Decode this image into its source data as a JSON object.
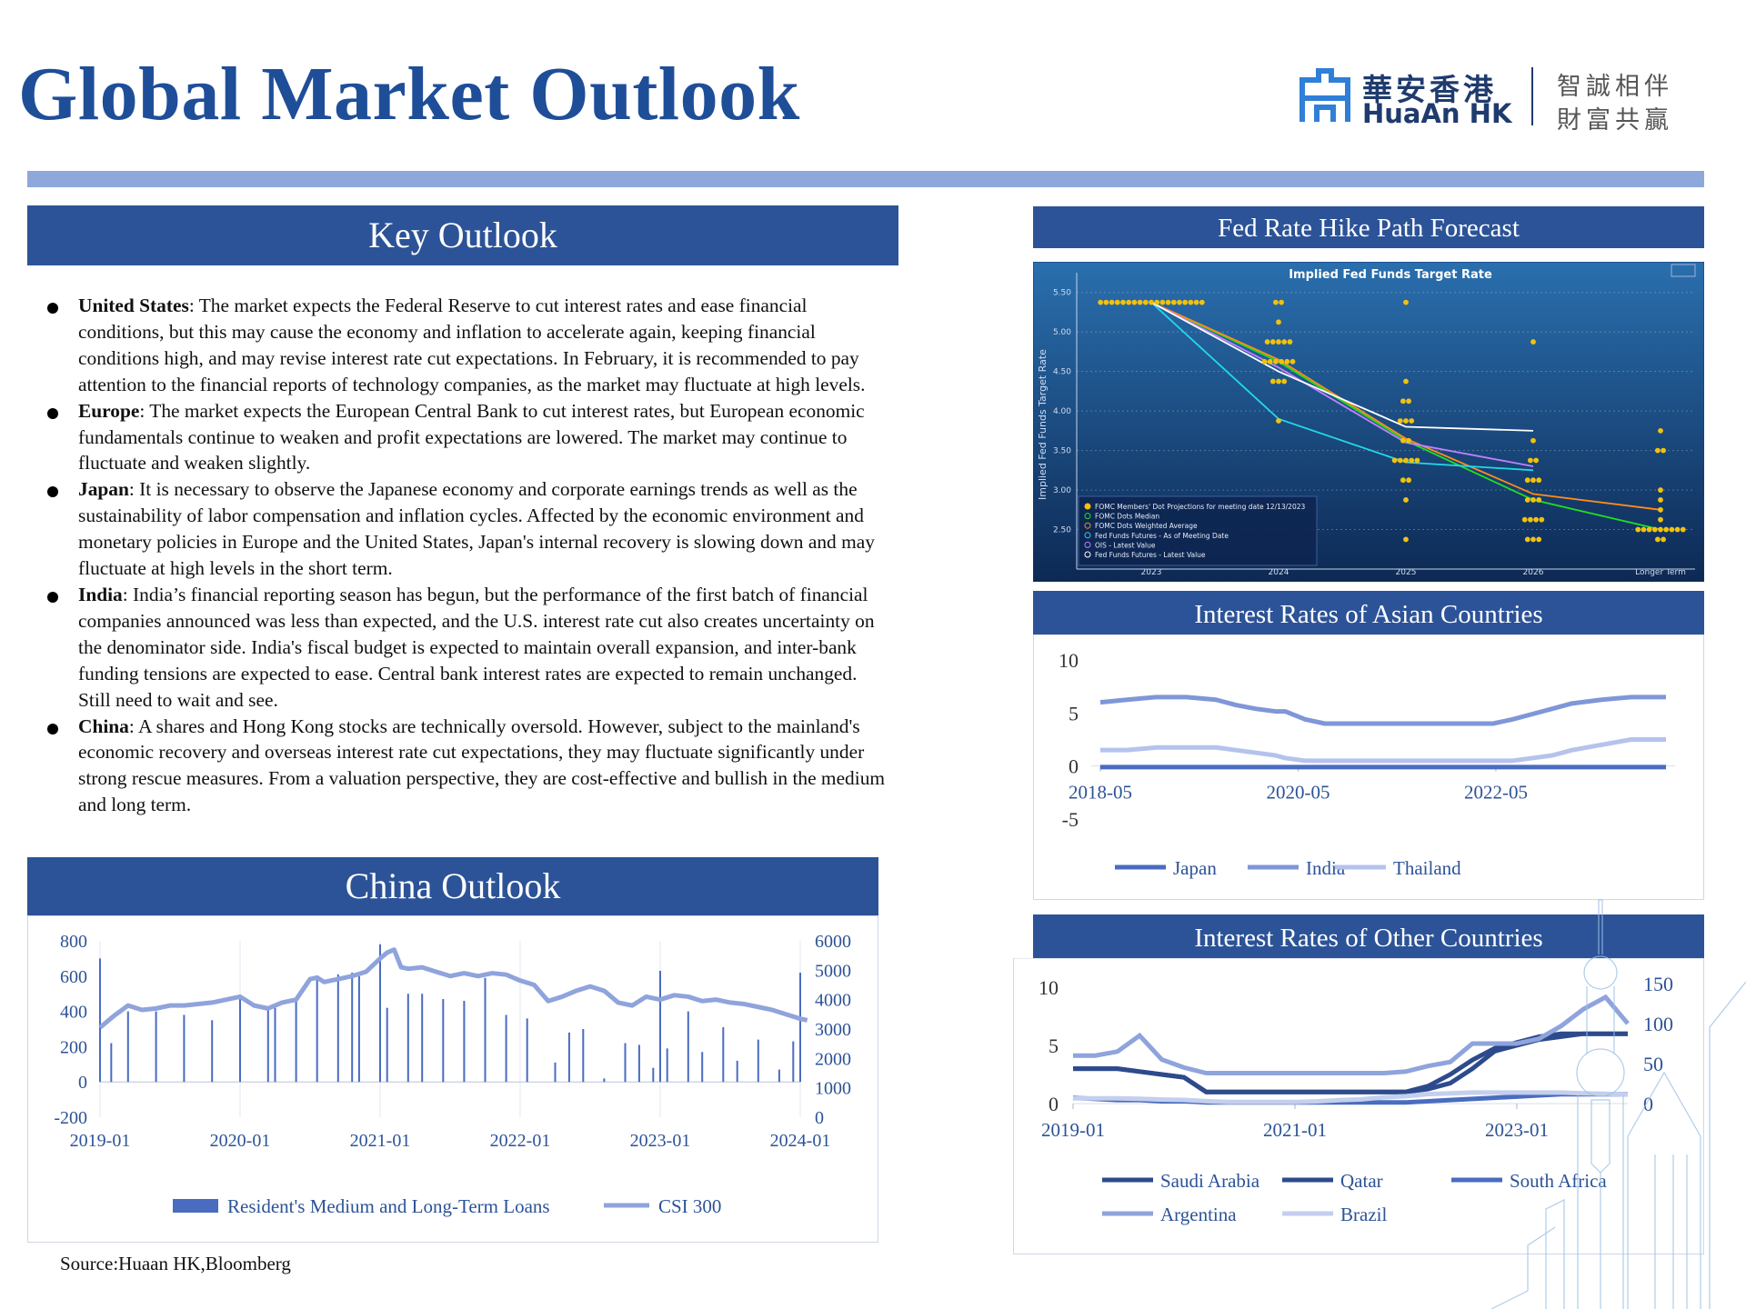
{
  "header": {
    "title": "Global Market Outlook",
    "logo_cn": "華安香港",
    "logo_en": "HuaAn HK",
    "slogan_line1": "智誠相伴",
    "slogan_line2": "財富共贏",
    "accent_color": "#2c5397",
    "title_color": "#1f4e99",
    "rule_color": "#8fa8dc"
  },
  "key_outlook": {
    "heading": "Key Outlook",
    "items": [
      {
        "label": "United States",
        "text": ": The market expects the Federal Reserve to cut interest rates and ease financial conditions, but this may cause the economy and inflation to accelerate again, keeping financial conditions high, and may revise interest rate cut expectations. In February, it is recommended to pay attention to the financial reports of technology companies, as the market may fluctuate at high levels."
      },
      {
        "label": "Europe",
        "text": ": The market expects the European Central Bank to cut interest rates, but European economic fundamentals continue to weaken and profit expectations are lowered. The market may continue to fluctuate and weaken slightly."
      },
      {
        "label": "Japan",
        "text": ": It is necessary to observe the Japanese economy and corporate earnings trends as well as the sustainability of labor compensation and inflation cycles. Affected by the economic environment and monetary policies in Europe and the United States, Japan's internal recovery is slowing down and may fluctuate at high levels in the short term."
      },
      {
        "label": "India",
        "text": ": India’s financial reporting season has begun, but the performance of the first batch of financial companies announced was less than expected, and the U.S. interest rate cut also creates uncertainty on the denominator side. India's fiscal budget is expected to maintain overall expansion, and inter-bank funding tensions are expected to ease. Central bank interest rates are expected to remain unchanged. Still need to wait and see."
      },
      {
        "label": "China",
        "text": ": A shares and Hong Kong stocks are technically oversold. However, subject to the mainland's economic recovery and overseas interest rate cut expectations, they may fluctuate significantly under strong rescue measures. From a valuation perspective, they are cost-effective and bullish in the medium and long term."
      }
    ]
  },
  "china_outlook": {
    "heading": "China Outlook"
  },
  "fed_panel": {
    "heading": "Fed Rate Hike Path Forecast"
  },
  "asia_panel": {
    "heading": "Interest Rates of Asian Countries"
  },
  "other_panel": {
    "heading": "Interest Rates of Other Countries"
  },
  "source": "Source:Huaan HK,Bloomberg",
  "chart_data": [
    {
      "id": "china",
      "type": "bar+line",
      "x_ticks": [
        "2019-01",
        "2020-01",
        "2021-01",
        "2022-01",
        "2023-01",
        "2024-01"
      ],
      "y_left_ticks": [
        "800",
        "600",
        "400",
        "200",
        "0",
        "-200"
      ],
      "y_left_range": [
        -200,
        800
      ],
      "y_right_ticks": [
        "6000",
        "5000",
        "4000",
        "3000",
        "2000",
        "1000",
        "0"
      ],
      "y_right_range": [
        0,
        6000
      ],
      "bar_series": {
        "name": "Resident's Medium and Long-Term Loans",
        "color": "#4a6cc0",
        "x": [
          2019.0,
          2019.08,
          2019.2,
          2019.4,
          2019.6,
          2019.8,
          2020.0,
          2020.2,
          2020.25,
          2020.4,
          2020.55,
          2020.7,
          2020.8,
          2020.85,
          2021.0,
          2021.05,
          2021.2,
          2021.3,
          2021.45,
          2021.6,
          2021.75,
          2021.9,
          2022.05,
          2022.25,
          2022.35,
          2022.45,
          2022.6,
          2022.75,
          2022.85,
          2022.95,
          2023.0,
          2023.05,
          2023.2,
          2023.3,
          2023.45,
          2023.55,
          2023.7,
          2023.85,
          2023.95,
          2024.0
        ],
        "values": [
          700,
          220,
          400,
          400,
          380,
          350,
          480,
          410,
          420,
          470,
          600,
          610,
          620,
          600,
          780,
          420,
          500,
          500,
          470,
          460,
          590,
          380,
          360,
          110,
          280,
          300,
          20,
          220,
          210,
          80,
          630,
          190,
          400,
          170,
          310,
          120,
          240,
          70,
          230,
          620
        ]
      },
      "line_series": {
        "name": "CSI 300",
        "color": "#8fa3dc",
        "x": [
          2019.0,
          2019.1,
          2019.2,
          2019.3,
          2019.4,
          2019.5,
          2019.6,
          2019.7,
          2019.8,
          2019.9,
          2020.0,
          2020.1,
          2020.2,
          2020.3,
          2020.4,
          2020.5,
          2020.55,
          2020.6,
          2020.7,
          2020.8,
          2020.9,
          2021.0,
          2021.05,
          2021.1,
          2021.15,
          2021.2,
          2021.3,
          2021.4,
          2021.5,
          2021.6,
          2021.7,
          2021.8,
          2021.9,
          2022.0,
          2022.1,
          2022.2,
          2022.3,
          2022.4,
          2022.5,
          2022.6,
          2022.7,
          2022.8,
          2022.9,
          2023.0,
          2023.1,
          2023.2,
          2023.3,
          2023.4,
          2023.5,
          2023.6,
          2023.7,
          2023.8,
          2023.9,
          2024.0,
          2024.05
        ],
        "values": [
          3050,
          3450,
          3800,
          3650,
          3700,
          3800,
          3800,
          3850,
          3900,
          4000,
          4100,
          3800,
          3700,
          3900,
          4000,
          4700,
          4750,
          4600,
          4700,
          4800,
          4950,
          5400,
          5600,
          5700,
          5100,
          5050,
          5100,
          4950,
          4800,
          4900,
          4800,
          4900,
          4850,
          4650,
          4500,
          3950,
          4100,
          4300,
          4450,
          4300,
          3900,
          3800,
          4100,
          4000,
          4150,
          4100,
          3950,
          4000,
          3900,
          3850,
          3750,
          3650,
          3500,
          3350,
          3300
        ]
      }
    },
    {
      "id": "fed",
      "type": "scatter+line",
      "title": "Implied Fed Funds Target Rate",
      "ylabel": "Implied Fed Funds Target Rate",
      "x_ticks": [
        "2023",
        "2024",
        "2025",
        "2026",
        "Longer Term"
      ],
      "y_ticks": [
        "5.50",
        "5.00",
        "4.50",
        "4.00",
        "3.50",
        "3.00",
        "2.50"
      ],
      "y_range": [
        2.0,
        5.75
      ],
      "legend": [
        "FOMC Members' Dot Projections for meeting date 12/13/2023",
        "FOMC Dots Median",
        "FOMC Dots Weighted Average",
        "Fed Funds Futures - As of Meeting Date",
        "OIS - Latest Value",
        "Fed Funds Futures - Latest Value"
      ],
      "dots": [
        {
          "x": "2023",
          "values": [
            5.375,
            5.375,
            5.375,
            5.375,
            5.375,
            5.375,
            5.375,
            5.375,
            5.375,
            5.375,
            5.375,
            5.375,
            5.375,
            5.375,
            5.375,
            5.375,
            5.375,
            5.375,
            5.375
          ]
        },
        {
          "x": "2024",
          "values": [
            5.375,
            5.375,
            5.125,
            4.875,
            4.875,
            4.875,
            4.875,
            4.875,
            4.625,
            4.625,
            4.625,
            4.625,
            4.625,
            4.625,
            4.375,
            4.375,
            4.375,
            3.875
          ]
        },
        {
          "x": "2025",
          "values": [
            5.375,
            4.375,
            4.125,
            4.125,
            3.875,
            3.875,
            3.875,
            3.625,
            3.625,
            3.375,
            3.375,
            3.375,
            3.375,
            3.375,
            3.125,
            3.125,
            2.875,
            2.375
          ]
        },
        {
          "x": "2026",
          "values": [
            4.875,
            3.625,
            3.375,
            3.125,
            3.125,
            2.875,
            2.875,
            2.875,
            2.625,
            2.625,
            2.625,
            2.625,
            2.375,
            2.375,
            2.375,
            3.375,
            3.125
          ]
        },
        {
          "x": "Longer Term",
          "values": [
            3.75,
            3.5,
            3.5,
            3.0,
            2.875,
            2.75,
            2.625,
            2.5,
            2.5,
            2.5,
            2.5,
            2.5,
            2.5,
            2.5,
            2.5,
            2.5,
            2.375,
            2.375
          ]
        }
      ],
      "lines": [
        {
          "name": "FOMC Dots Median",
          "color": "#22dd22",
          "x": [
            "2023",
            "2024",
            "2025",
            "2026",
            "Longer Term"
          ],
          "values": [
            5.375,
            4.625,
            3.625,
            2.875,
            2.5
          ]
        },
        {
          "name": "FOMC Dots Weighted Average",
          "color": "#ff8c1a",
          "x": [
            "2023",
            "2024",
            "2025",
            "2026",
            "Longer Term"
          ],
          "values": [
            5.375,
            4.65,
            3.65,
            2.95,
            2.75
          ]
        },
        {
          "name": "Fed Funds Futures - As of Meeting Date",
          "color": "#22d8e8",
          "x": [
            "2023",
            "2024",
            "2025",
            "2026"
          ],
          "values": [
            5.375,
            3.9,
            3.35,
            3.25
          ]
        },
        {
          "name": "OIS - Latest Value",
          "color": "#c080ff",
          "x": [
            "2023",
            "2024",
            "2025",
            "2026"
          ],
          "values": [
            5.375,
            4.55,
            3.6,
            3.3
          ]
        },
        {
          "name": "Fed Funds Futures - Latest Value",
          "color": "#ffffff",
          "x": [
            "2023",
            "2024",
            "2025",
            "2026"
          ],
          "values": [
            5.375,
            4.5,
            3.8,
            3.75
          ]
        }
      ]
    },
    {
      "id": "asia",
      "type": "line",
      "x_ticks": [
        "2018-05",
        "2020-05",
        "2022-05"
      ],
      "y_ticks": [
        "10",
        "5",
        "0",
        "-5"
      ],
      "y_range": [
        -5,
        10
      ],
      "x": [
        2018.33,
        2018.6,
        2018.9,
        2019.2,
        2019.5,
        2019.7,
        2019.9,
        2020.1,
        2020.2,
        2020.4,
        2020.6,
        2020.8,
        2021.0,
        2021.5,
        2022.0,
        2022.3,
        2022.5,
        2022.7,
        2022.9,
        2023.1,
        2023.4,
        2023.7,
        2024.0,
        2024.05
      ],
      "series": [
        {
          "name": "Japan",
          "color": "#4a6cc0",
          "values": [
            -0.1,
            -0.1,
            -0.1,
            -0.1,
            -0.1,
            -0.1,
            -0.1,
            -0.1,
            -0.1,
            -0.1,
            -0.1,
            -0.1,
            -0.1,
            -0.1,
            -0.1,
            -0.1,
            -0.1,
            -0.1,
            -0.1,
            -0.1,
            -0.1,
            -0.1,
            -0.1,
            -0.1
          ]
        },
        {
          "name": "India",
          "color": "#7f96d8",
          "values": [
            6.0,
            6.25,
            6.5,
            6.5,
            6.25,
            5.75,
            5.4,
            5.15,
            5.15,
            4.4,
            4.0,
            4.0,
            4.0,
            4.0,
            4.0,
            4.0,
            4.4,
            4.9,
            5.4,
            5.9,
            6.25,
            6.5,
            6.5,
            6.5
          ]
        },
        {
          "name": "Thailand",
          "color": "#b5c3ec",
          "values": [
            1.5,
            1.5,
            1.75,
            1.75,
            1.75,
            1.5,
            1.25,
            1.0,
            0.75,
            0.5,
            0.5,
            0.5,
            0.5,
            0.5,
            0.5,
            0.5,
            0.5,
            0.75,
            1.0,
            1.5,
            2.0,
            2.5,
            2.5,
            2.5
          ]
        }
      ]
    },
    {
      "id": "other",
      "type": "line",
      "x_ticks": [
        "2019-01",
        "2021-01",
        "2023-01"
      ],
      "y_left_ticks": [
        "10",
        "5",
        "0"
      ],
      "y_left_range": [
        0,
        10
      ],
      "y_right_ticks": [
        "150",
        "100",
        "50",
        "0"
      ],
      "y_right_range": [
        0,
        150
      ],
      "x": [
        2019.0,
        2019.2,
        2019.4,
        2019.6,
        2019.8,
        2020.0,
        2020.2,
        2020.4,
        2020.6,
        2020.8,
        2021.0,
        2021.2,
        2021.4,
        2021.6,
        2021.8,
        2022.0,
        2022.2,
        2022.4,
        2022.6,
        2022.8,
        2023.0,
        2023.2,
        2023.4,
        2023.6,
        2023.8,
        2024.0
      ],
      "series": [
        {
          "name": "Saudi Arabia",
          "color": "#2d4a8c",
          "axis": "left",
          "values": [
            3.0,
            3.0,
            3.0,
            2.75,
            2.5,
            2.25,
            1.0,
            1.0,
            1.0,
            1.0,
            1.0,
            1.0,
            1.0,
            1.0,
            1.0,
            1.0,
            1.25,
            1.75,
            3.0,
            4.5,
            5.0,
            5.5,
            5.75,
            6.0,
            6.0,
            6.0
          ]
        },
        {
          "name": "Qatar",
          "color": "#2d4a8c",
          "axis": "left",
          "values": [
            3.0,
            3.0,
            3.0,
            2.75,
            2.5,
            2.25,
            1.0,
            1.0,
            1.0,
            1.0,
            1.0,
            1.0,
            1.0,
            1.0,
            1.0,
            1.0,
            1.5,
            2.5,
            3.75,
            4.75,
            5.25,
            5.75,
            6.0,
            6.0,
            6.0,
            6.0
          ]
        },
        {
          "name": "South Africa",
          "color": "#4a6cc0",
          "axis": "left",
          "values": [
            0.5,
            0.4,
            0.3,
            0.3,
            0.2,
            0.2,
            0.1,
            0.1,
            0.1,
            0.1,
            0.1,
            0.1,
            0.1,
            0.1,
            0.1,
            0.1,
            0.2,
            0.3,
            0.4,
            0.5,
            0.6,
            0.7,
            0.8,
            0.8,
            0.8,
            0.8
          ]
        },
        {
          "name": "Argentina",
          "color": "#8fa3dc",
          "axis": "right",
          "values": [
            60,
            60,
            65,
            85,
            55,
            45,
            38,
            38,
            38,
            38,
            38,
            38,
            38,
            38,
            38,
            40,
            47,
            52,
            75,
            75,
            75,
            81,
            97,
            118,
            133,
            100
          ]
        },
        {
          "name": "Brazil",
          "color": "#c4cfee",
          "axis": "right",
          "values": [
            6.5,
            6.5,
            6.5,
            6.0,
            5.0,
            4.5,
            3.0,
            2.0,
            2.0,
            2.0,
            2.0,
            2.75,
            4.25,
            5.25,
            7.75,
            9.25,
            11.75,
            12.75,
            13.75,
            13.75,
            13.75,
            13.75,
            13.75,
            12.75,
            12.25,
            11.25
          ]
        }
      ]
    }
  ]
}
